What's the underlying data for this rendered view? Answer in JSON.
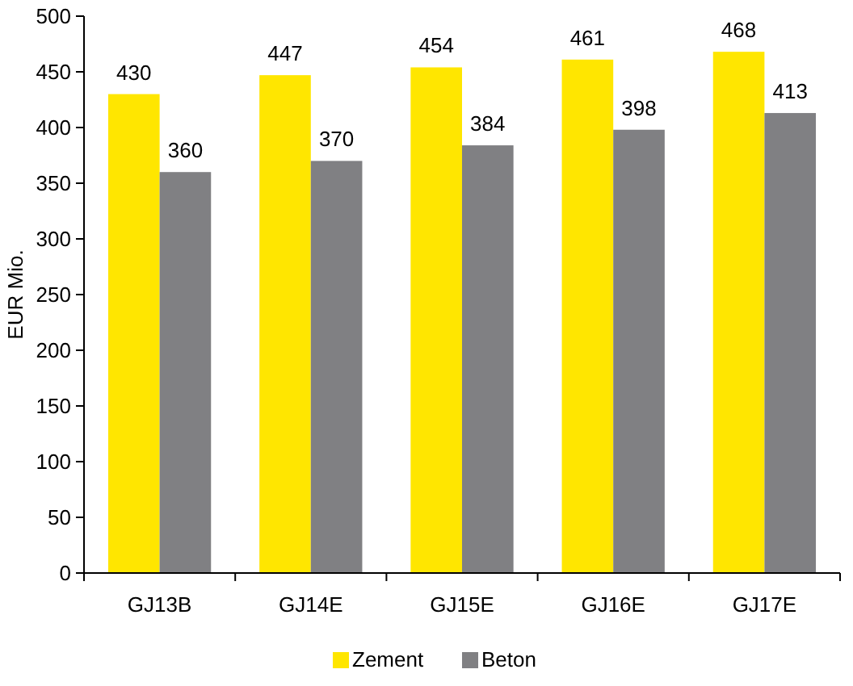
{
  "chart_data": {
    "type": "bar",
    "ylabel": "EUR Mio.",
    "categories": [
      "GJ13B",
      "GJ14E",
      "GJ15E",
      "GJ16E",
      "GJ17E"
    ],
    "series": [
      {
        "name": "Zement",
        "color": "#ffe600",
        "values": [
          430,
          447,
          454,
          461,
          468
        ]
      },
      {
        "name": "Beton",
        "color": "#808083",
        "values": [
          360,
          370,
          384,
          398,
          413
        ]
      }
    ],
    "ylim": [
      0,
      500
    ],
    "yticks": [
      0,
      50,
      100,
      150,
      200,
      250,
      300,
      350,
      400,
      450,
      500
    ],
    "grid": false,
    "legend": "bottom",
    "data_labels": true
  }
}
